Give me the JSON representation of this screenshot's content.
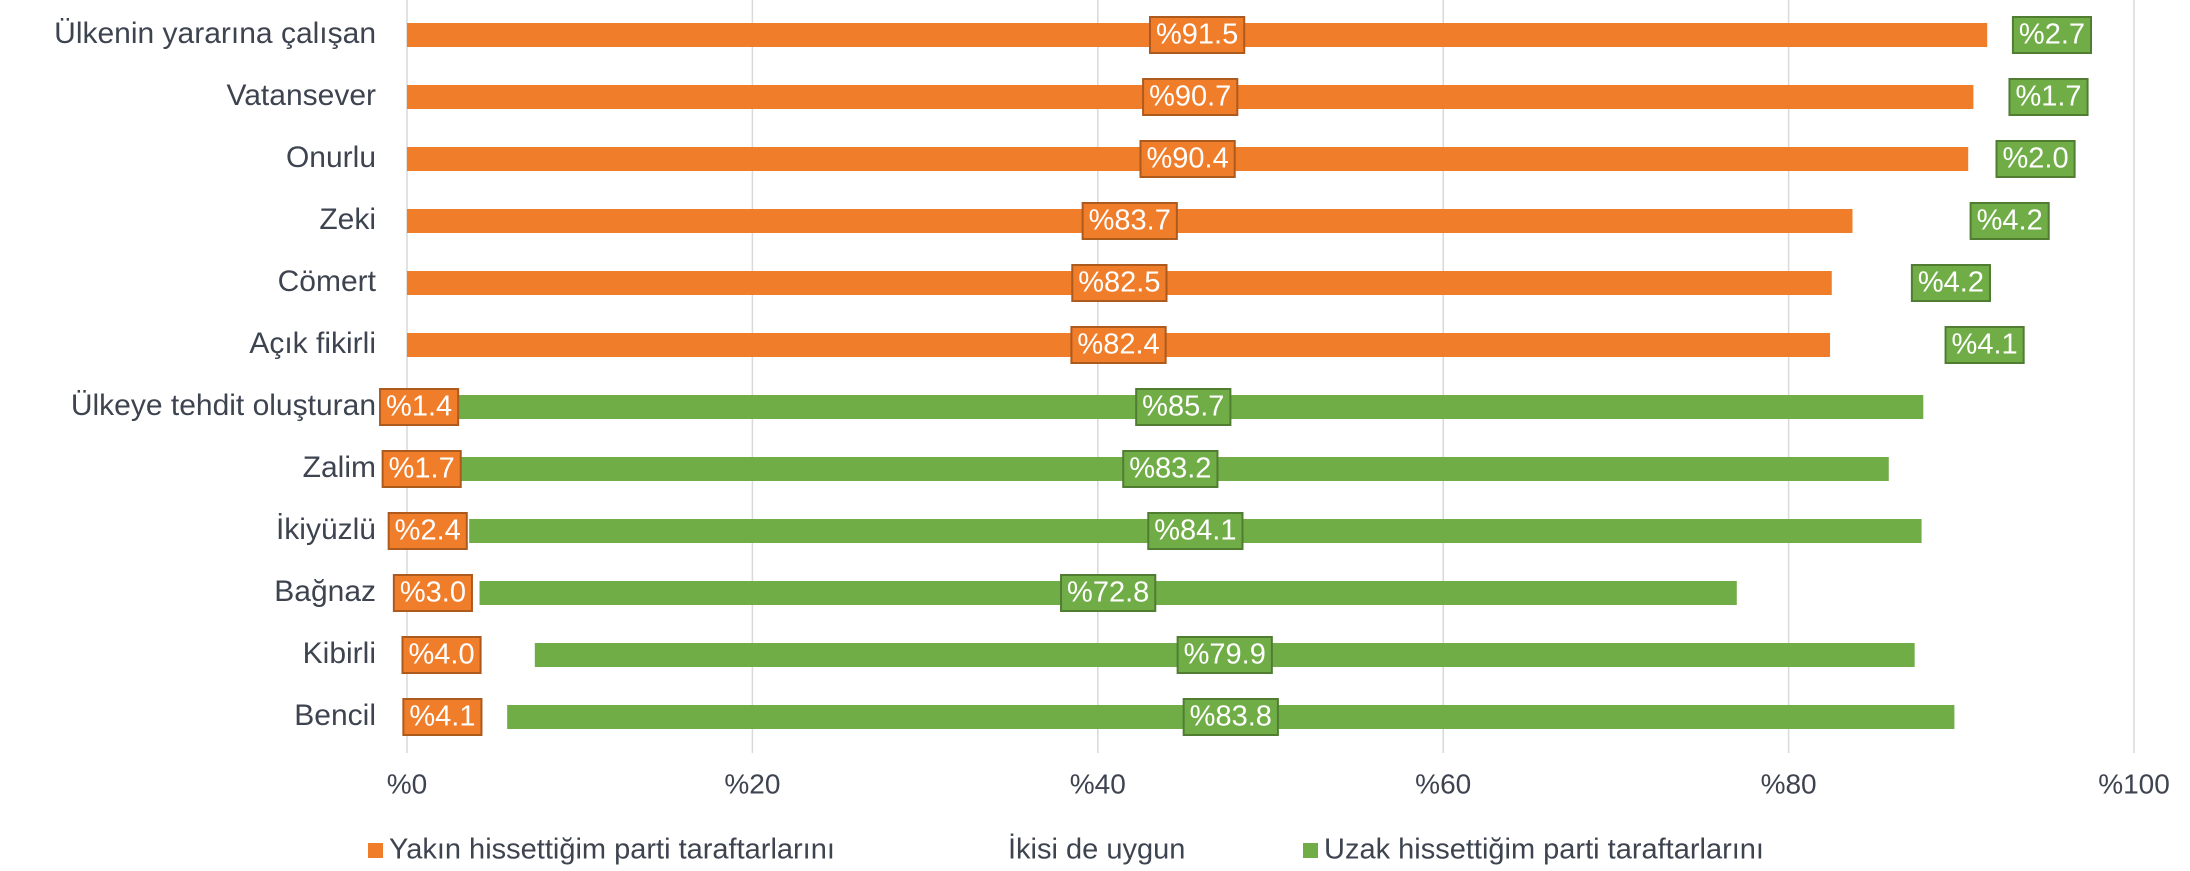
{
  "chart_data": {
    "type": "stacked-bar",
    "orientation": "horizontal",
    "categories": [
      "Ülkenin yararına çalışan",
      "Vatansever",
      "Onurlu",
      "Zeki",
      "Cömert",
      "Açık fikirli",
      "Ülkeye tehdit oluşturan",
      "Zalim",
      "İkiyüzlü",
      "Bağnaz",
      "Kibirli",
      "Bencil"
    ],
    "series": [
      {
        "name": "Yakın hissettiğim parti taraftarlarını",
        "color": "#f07d2a",
        "values": [
          91.5,
          90.7,
          90.4,
          83.7,
          82.5,
          82.4,
          1.4,
          1.7,
          2.4,
          3.0,
          4.0,
          4.1
        ],
        "value_labels": [
          "%91.5",
          "%90.7",
          "%90.4",
          "%83.7",
          "%82.5",
          "%82.4",
          "%1.4",
          "%1.7",
          "%2.4",
          "%3.0",
          "%4.0",
          "%4.1"
        ]
      },
      {
        "name": "İkisi de uygun",
        "color": "none",
        "values": [
          2.4,
          3.5,
          2.9,
          7.0,
          4.8,
          6.9,
          0.7,
          0.9,
          1.2,
          1.2,
          3.4,
          1.7
        ]
      },
      {
        "name": "Uzak hissettiğim parti taraftarlarını",
        "color": "#70ad47",
        "values": [
          2.7,
          1.7,
          2.0,
          4.2,
          4.2,
          4.1,
          85.7,
          83.2,
          84.1,
          72.8,
          79.9,
          83.8
        ],
        "value_labels": [
          "%2.7",
          "%1.7",
          "%2.0",
          "%4.2",
          "%4.2",
          "%4.1",
          "%85.7",
          "%83.2",
          "%84.1",
          "%72.8",
          "%79.9",
          "%83.8"
        ]
      }
    ],
    "xlim": [
      0,
      100
    ],
    "xticks": [
      {
        "value": 0,
        "label": "%0"
      },
      {
        "value": 20,
        "label": "%20"
      },
      {
        "value": 40,
        "label": "%40"
      },
      {
        "value": 60,
        "label": "%60"
      },
      {
        "value": 80,
        "label": "%80"
      },
      {
        "value": 100,
        "label": "%100"
      }
    ],
    "grid": true,
    "legend": "bottom"
  }
}
